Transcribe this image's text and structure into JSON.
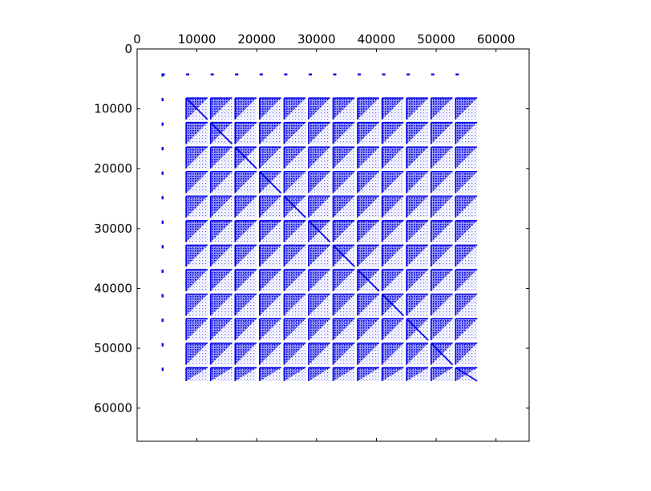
{
  "chart_data": {
    "type": "heatmap",
    "subtype": "sparsity-pattern",
    "title": "",
    "xlabel": "",
    "ylabel": "",
    "xlim": [
      0,
      65536
    ],
    "ylim": [
      0,
      65536
    ],
    "x_axis_position": "top",
    "y_axis_inverted": true,
    "grid": false,
    "marker_color": "#0000e6",
    "x_ticks": [
      0,
      10000,
      20000,
      30000,
      40000,
      50000,
      60000
    ],
    "x_tick_labels": [
      "0",
      "10000",
      "20000",
      "30000",
      "40000",
      "50000",
      "60000"
    ],
    "y_ticks": [
      0,
      10000,
      20000,
      30000,
      40000,
      50000,
      60000
    ],
    "y_tick_labels": [
      "0",
      "10000",
      "20000",
      "30000",
      "40000",
      "50000",
      "60000"
    ],
    "block_grid": {
      "block_size": 4096,
      "full_block_rows_start": 8192,
      "full_block_cols_start": 8192,
      "rows": 12,
      "cols": 12,
      "extent": [
        4096,
        57344
      ],
      "first_row_of_markers_y": 4096,
      "first_col_of_markers_x": 4096,
      "diagonal_emphasis": true
    }
  }
}
